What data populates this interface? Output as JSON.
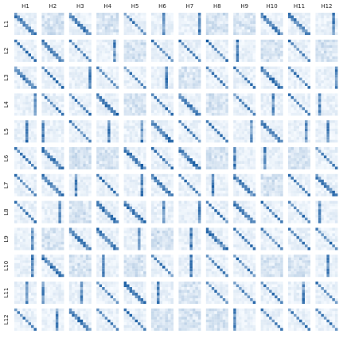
{
  "columns": [
    "H1",
    "H2",
    "H3",
    "H4",
    "H5",
    "H6",
    "H7",
    "H8",
    "H9",
    "H10",
    "H11",
    "H12"
  ],
  "rows": [
    "L1",
    "L2",
    "L3",
    "L4",
    "L5",
    "L6",
    "L7",
    "L8",
    "L9",
    "L10",
    "L11",
    "L12"
  ]
}
